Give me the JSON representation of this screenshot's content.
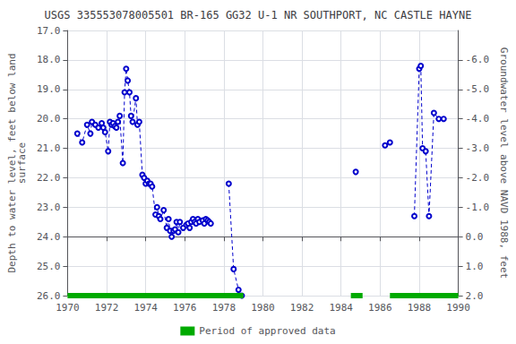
{
  "chart_data": {
    "type": "line",
    "title": "USGS 335553078005501 BR-165 GG32 U-1 NR SOUTHPORT, NC CASTLE HAYNE",
    "y_label": "Depth to water level, feet below land\nsurface",
    "y2_label": "Groundwater level above NAVD 1988, feet",
    "xlim": [
      1970,
      1990
    ],
    "xticks": [
      1970,
      1972,
      1974,
      1976,
      1978,
      1980,
      1982,
      1984,
      1986,
      1988,
      1990
    ],
    "ylim": [
      26.0,
      17.0
    ],
    "yticks": [
      {
        "value": 17.0,
        "label": "17.0"
      },
      {
        "value": 18.0,
        "label": "18.0"
      },
      {
        "value": 19.0,
        "label": "19.0"
      },
      {
        "value": 20.0,
        "label": "20.0"
      },
      {
        "value": 21.0,
        "label": "21.0"
      },
      {
        "value": 22.0,
        "label": "22.0"
      },
      {
        "value": 23.0,
        "label": "23.0"
      },
      {
        "value": 24.0,
        "label": "24.0"
      },
      {
        "value": 25.0,
        "label": "25.0"
      },
      {
        "value": 26.0,
        "label": "26.0"
      }
    ],
    "y2lim": [
      2.0,
      -7.0
    ],
    "y2ticks": [
      {
        "value": 2.0,
        "label": "2.0"
      },
      {
        "value": 1.0,
        "label": "1.0"
      },
      {
        "value": 0.0,
        "label": "0.0"
      },
      {
        "value": -1.0,
        "label": "-1.0"
      },
      {
        "value": -2.0,
        "label": "-2.0"
      },
      {
        "value": -3.0,
        "label": "-3.0"
      },
      {
        "value": -4.0,
        "label": "-4.0"
      },
      {
        "value": -5.0,
        "label": "-5.0"
      },
      {
        "value": -6.0,
        "label": "-6.0"
      }
    ],
    "grid": true,
    "legend": "bottom",
    "series": [
      {
        "type": "line",
        "color": "#0000cc",
        "marker": "circle",
        "line_style": "dashed",
        "x": [
          1970.5,
          1970.75,
          1971.0,
          1971.17,
          1971.25,
          1971.42,
          1971.58,
          1971.75,
          1971.83,
          1971.92,
          1972.08,
          1972.17,
          1972.25,
          1972.33,
          1972.42,
          1972.5,
          1972.58,
          1972.67,
          1972.83,
          1972.92,
          1973.0,
          1973.08,
          1973.17,
          1973.25,
          1973.33,
          1973.5,
          1973.58,
          1973.67,
          1973.83,
          1973.92,
          1974.0,
          1974.08,
          1974.17,
          1974.25,
          1974.33,
          1974.5,
          1974.58,
          1974.67,
          1974.75,
          1974.92,
          1975.08,
          1975.17,
          1975.25,
          1975.33,
          1975.42,
          1975.5,
          1975.58,
          1975.67,
          1975.75,
          1975.92,
          1976.08,
          1976.17,
          1976.25,
          1976.33,
          1976.42,
          1976.5,
          1976.58,
          1976.67,
          1976.75,
          1976.92,
          1977.0,
          1977.08,
          1977.17,
          1977.25,
          1977.33
        ],
        "values": [
          20.5,
          20.8,
          20.2,
          20.5,
          20.1,
          20.2,
          20.3,
          20.15,
          20.3,
          20.45,
          21.1,
          20.1,
          20.2,
          20.15,
          20.25,
          20.3,
          20.1,
          19.9,
          21.5,
          19.1,
          18.3,
          18.7,
          19.1,
          19.9,
          20.1,
          19.3,
          20.2,
          20.1,
          21.9,
          22.0,
          22.2,
          22.1,
          22.2,
          22.2,
          22.3,
          23.25,
          23.0,
          23.3,
          23.4,
          23.1,
          23.7,
          23.4,
          23.8,
          24.0,
          23.8,
          23.75,
          23.5,
          23.85,
          23.5,
          23.7,
          23.6,
          23.55,
          23.7,
          23.5,
          23.4,
          23.5,
          23.55,
          23.4,
          23.5,
          23.45,
          23.55,
          23.4,
          23.45,
          23.5,
          23.55
        ]
      },
      {
        "type": "line",
        "color": "#0000cc",
        "marker": "circle",
        "line_style": "dashed",
        "x": [
          1978.25,
          1978.5,
          1978.75,
          1978.92
        ],
        "values": [
          22.2,
          25.1,
          25.8,
          26.0
        ]
      },
      {
        "type": "line",
        "color": "#0000cc",
        "marker": "circle",
        "line_style": "dashed",
        "x": [
          1984.75
        ],
        "values": [
          21.8
        ]
      },
      {
        "type": "line",
        "color": "#0000cc",
        "marker": "circle",
        "line_style": "dashed",
        "x": [
          1986.25,
          1986.5
        ],
        "values": [
          20.9,
          20.8
        ]
      },
      {
        "type": "line",
        "color": "#0000cc",
        "marker": "circle",
        "line_style": "dashed",
        "x": [
          1987.75,
          1988.0,
          1988.08,
          1988.17,
          1988.33,
          1988.5,
          1988.75,
          1989.0,
          1989.25
        ],
        "values": [
          23.3,
          18.3,
          18.2,
          21.0,
          21.1,
          23.3,
          19.8,
          20.0,
          20.0
        ]
      },
      {
        "type": "range",
        "name": "Period of approved data",
        "color": "#00aa00",
        "x_start": [
          1970.0,
          1984.5,
          1986.5
        ],
        "x_end": [
          1979.0,
          1985.1,
          1990.0
        ],
        "values": [
          26.0,
          26.0,
          26.0
        ]
      }
    ]
  }
}
